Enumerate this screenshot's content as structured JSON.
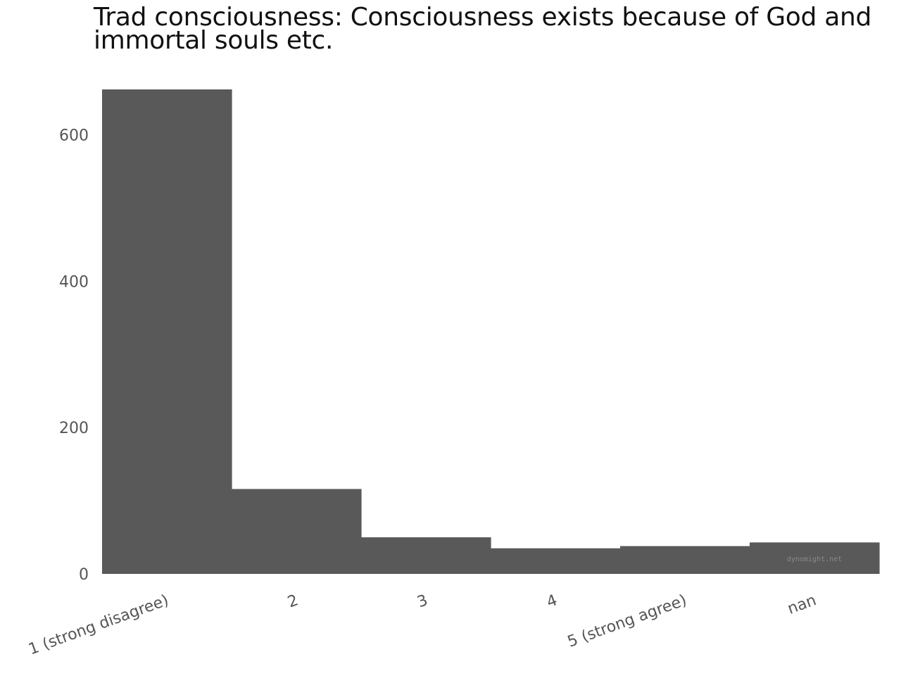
{
  "chart_data": {
    "type": "bar",
    "title": "Trad consciousness: Consciousness exists because of God and immortal souls etc.",
    "xlabel": "",
    "ylabel": "",
    "categories": [
      "1 (strong disagree)",
      "2",
      "3",
      "4",
      "5 (strong agree)",
      "nan"
    ],
    "values": [
      662,
      116,
      50,
      35,
      38,
      43
    ],
    "ylim": [
      0,
      662
    ],
    "yticks": [
      0,
      200,
      400,
      600
    ],
    "grid": false,
    "legend": "none",
    "bar_color": "#595959",
    "x_tick_rotation_deg": -20
  },
  "watermark": "dynomight.net",
  "colors": {
    "tick_text": "#555555",
    "title_text": "#111111",
    "watermark_text": "#8a8a8a"
  }
}
